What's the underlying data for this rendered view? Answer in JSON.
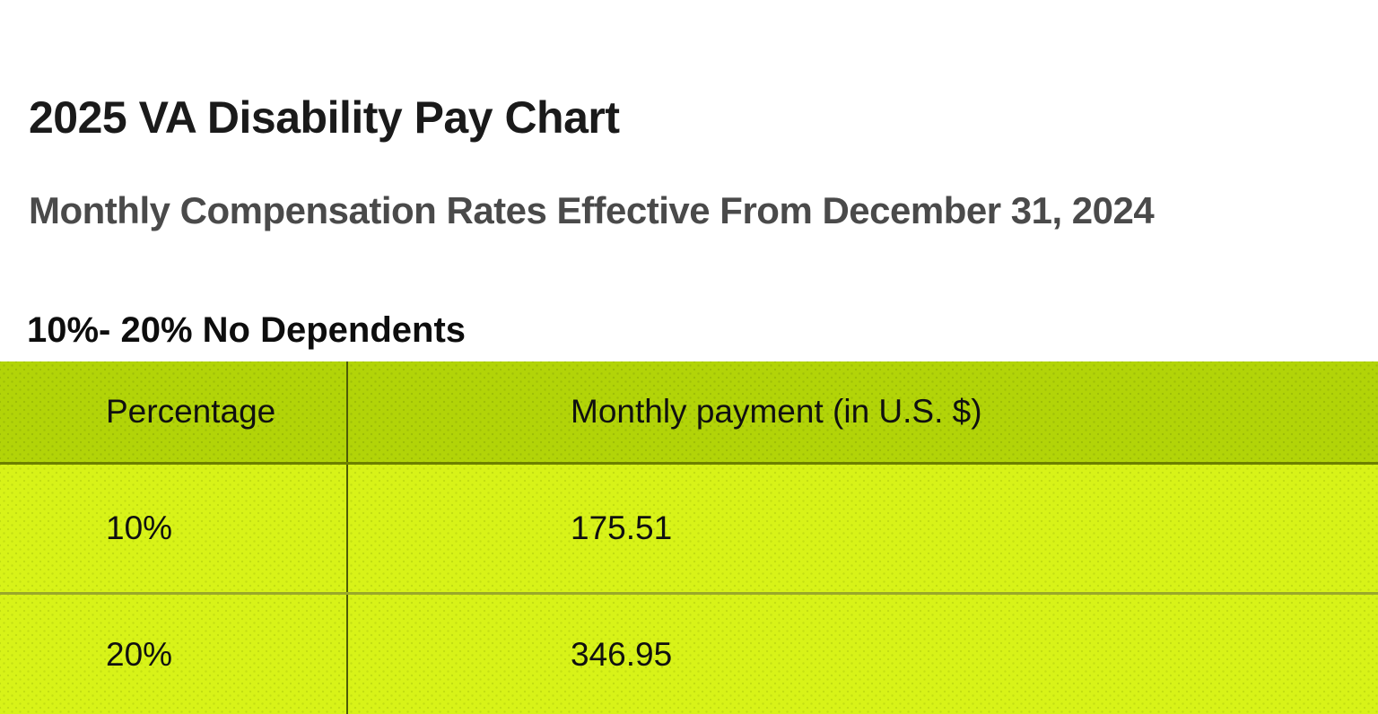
{
  "page": {
    "title": "2025 VA Disability Pay Chart",
    "subtitle": "Monthly Compensation Rates Effective From December 31, 2024",
    "section_heading": "10%- 20% No Dependents"
  },
  "table": {
    "columns": {
      "percentage": "Percentage",
      "monthly_payment": "Monthly payment (in U.S. $)"
    },
    "rows": [
      {
        "percentage": "10%",
        "monthly_payment": "175.51"
      },
      {
        "percentage": "20%",
        "monthly_payment": "346.95"
      }
    ]
  },
  "colors": {
    "header_row_green": "#b2d408",
    "data_row_lime": "#d8f318",
    "column_divider": "#4e5c07",
    "header_bottom_border": "#6d7f00",
    "row_divider": "#9aa82a",
    "title_text": "#1a1a1a",
    "subtitle_text": "#4a4a4a",
    "table_text": "#101010"
  },
  "chart_data": {
    "type": "table",
    "title": "2025 VA Disability Pay Chart",
    "subtitle": "Monthly Compensation Rates Effective From December 31, 2024",
    "section": "10%- 20% No Dependents",
    "columns": [
      "Percentage",
      "Monthly payment (in U.S. $)"
    ],
    "rows": [
      [
        "10%",
        175.51
      ],
      [
        "20%",
        346.95
      ]
    ]
  }
}
